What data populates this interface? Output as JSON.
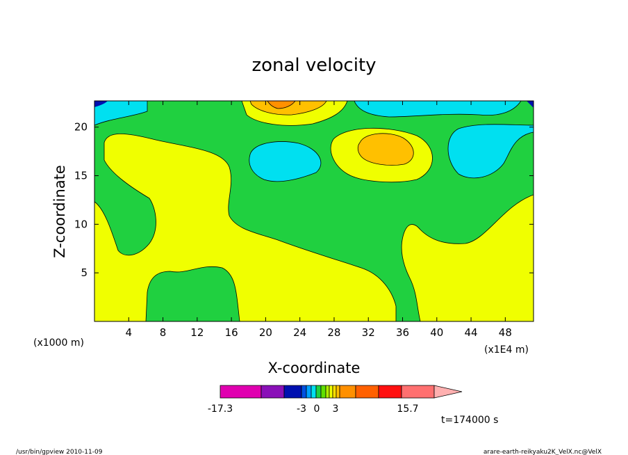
{
  "chart_data": {
    "type": "contour",
    "title": "zonal velocity",
    "xlabel": "X-coordinate",
    "ylabel": "Z-coordinate",
    "x_unit_note": "(x1E4 m)",
    "y_unit_note": "(x1000 m)",
    "x_ticks": [
      "4",
      "8",
      "12",
      "16",
      "20",
      "24",
      "28",
      "32",
      "36",
      "40",
      "44",
      "48"
    ],
    "y_ticks": [
      "5",
      "10",
      "15",
      "20"
    ],
    "xlim": [
      0,
      51.3
    ],
    "ylim": [
      0,
      22.7
    ],
    "time_label": "t=174000 s",
    "colorbar": {
      "labels": [
        "-17.3",
        "-3",
        "0",
        "3",
        "15.7"
      ],
      "colors": [
        "#e000b0",
        "#8a10b8",
        "#0010b0",
        "#0050e0",
        "#00a0ff",
        "#00e0f0",
        "#20d040",
        "#60e000",
        "#b0f000",
        "#f0ff00",
        "#ffe000",
        "#ffc000",
        "#ff9000",
        "#ff6000",
        "#ff1010",
        "#ff7070",
        "#ffb0b0"
      ]
    },
    "regions": [
      {
        "value_class": "positive-weak",
        "color": "#f0ff00",
        "note": "large yellow areas lower-left, mid-left, right-bottom"
      },
      {
        "value_class": "near-zero",
        "color": "#20d040",
        "note": "green background band"
      },
      {
        "value_class": "negative-weak",
        "color": "#00e0f0",
        "note": "cyan cells near top"
      },
      {
        "value_class": "positive-moderate",
        "color": "#ffc000",
        "note": "orange cells near top center"
      }
    ]
  },
  "footer": {
    "left": "/usr/bin/gpview   2010-11-09",
    "right": "arare-earth-reikyaku2K_VelX.nc@VelX"
  }
}
